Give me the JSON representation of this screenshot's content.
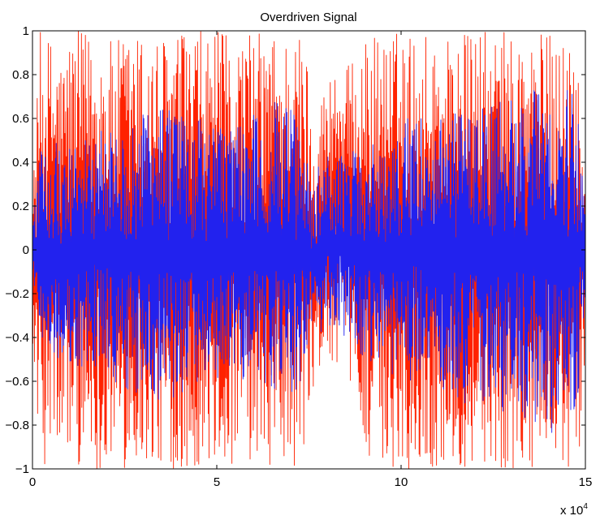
{
  "chart_data": {
    "type": "line",
    "title": "Overdriven Signal",
    "xlabel": "",
    "ylabel": "",
    "xlim": [
      0,
      150000
    ],
    "ylim": [
      -1,
      1
    ],
    "x_tick_labels": [
      "0",
      "5",
      "10",
      "15"
    ],
    "x_tick_values": [
      0,
      50000,
      100000,
      150000
    ],
    "x_multiplier_text": "x 10",
    "x_multiplier_exponent": "4",
    "y_tick_labels": [
      "1",
      "0.8",
      "0.6",
      "0.4",
      "0.2",
      "0",
      "−0.2",
      "−0.4",
      "−0.6",
      "−0.8",
      "−1"
    ],
    "y_tick_values": [
      1,
      0.8,
      0.6,
      0.4,
      0.2,
      0,
      -0.2,
      -0.4,
      -0.6,
      -0.8,
      -1
    ],
    "grid": false,
    "legend": "none",
    "series": [
      {
        "color": "#ff2200",
        "envelope_x": [
          0,
          1000,
          2000,
          4000,
          6000,
          8000,
          10000,
          14000,
          18000,
          22000,
          26000,
          30000,
          34000,
          38000,
          42000,
          46000,
          50000,
          54000,
          58000,
          62000,
          66000,
          70000,
          72000,
          74000,
          76000,
          78000,
          80000,
          82000,
          84000,
          86000,
          88000,
          92000,
          96000,
          100000,
          104000,
          108000,
          112000,
          116000,
          120000,
          124000,
          128000,
          132000,
          136000,
          140000,
          144000,
          148000,
          150000
        ],
        "envelope_upper": [
          0.25,
          0.6,
          1.0,
          0.98,
          1.0,
          0.9,
          1.0,
          1.0,
          1.0,
          0.95,
          1.0,
          1.0,
          0.98,
          1.0,
          1.0,
          1.0,
          1.0,
          0.98,
          1.0,
          1.0,
          1.0,
          1.0,
          1.0,
          1.0,
          0.6,
          0.7,
          0.8,
          0.88,
          0.85,
          0.85,
          0.88,
          1.0,
          1.0,
          1.0,
          1.0,
          1.0,
          1.0,
          1.0,
          1.0,
          1.0,
          1.0,
          1.0,
          1.0,
          1.0,
          1.0,
          1.0,
          0.3
        ],
        "envelope_lower": [
          -0.4,
          -0.7,
          -0.95,
          -1.0,
          -0.95,
          -1.0,
          -0.95,
          -1.0,
          -1.0,
          -1.0,
          -1.0,
          -1.0,
          -1.0,
          -1.0,
          -1.0,
          -1.0,
          -1.0,
          -1.0,
          -1.0,
          -1.0,
          -1.0,
          -1.0,
          -1.0,
          -1.0,
          -0.75,
          -0.55,
          -0.55,
          -0.5,
          -0.55,
          -0.6,
          -0.7,
          -1.0,
          -1.0,
          -1.0,
          -1.0,
          -1.0,
          -1.0,
          -1.0,
          -1.0,
          -1.0,
          -1.0,
          -1.0,
          -1.0,
          -1.0,
          -1.0,
          -1.0,
          -0.5
        ]
      },
      {
        "color": "#2222ee",
        "envelope_x": [
          0,
          1000,
          2000,
          4000,
          6000,
          8000,
          10000,
          14000,
          18000,
          22000,
          26000,
          30000,
          34000,
          38000,
          42000,
          46000,
          50000,
          54000,
          58000,
          62000,
          66000,
          70000,
          72000,
          74000,
          76000,
          78000,
          80000,
          82000,
          84000,
          86000,
          88000,
          92000,
          96000,
          100000,
          104000,
          108000,
          112000,
          116000,
          120000,
          124000,
          128000,
          132000,
          136000,
          140000,
          144000,
          148000,
          150000
        ],
        "envelope_upper": [
          0.1,
          0.3,
          0.45,
          0.45,
          0.5,
          0.45,
          0.5,
          0.5,
          0.55,
          0.55,
          0.6,
          0.65,
          0.65,
          0.65,
          0.6,
          0.6,
          0.55,
          0.6,
          0.6,
          0.65,
          0.7,
          0.65,
          0.6,
          0.55,
          0.35,
          0.4,
          0.45,
          0.45,
          0.45,
          0.45,
          0.45,
          0.5,
          0.55,
          0.6,
          0.6,
          0.6,
          0.6,
          0.65,
          0.65,
          0.65,
          0.7,
          0.7,
          0.75,
          0.8,
          0.8,
          0.65,
          0.15
        ],
        "envelope_lower": [
          -0.1,
          -0.3,
          -0.45,
          -0.45,
          -0.5,
          -0.5,
          -0.55,
          -0.55,
          -0.55,
          -0.6,
          -0.65,
          -0.7,
          -0.7,
          -0.7,
          -0.65,
          -0.65,
          -0.6,
          -0.6,
          -0.6,
          -0.65,
          -0.7,
          -0.7,
          -0.65,
          -0.6,
          -0.45,
          -0.4,
          -0.4,
          -0.4,
          -0.4,
          -0.45,
          -0.45,
          -0.55,
          -0.6,
          -0.6,
          -0.6,
          -0.6,
          -0.65,
          -0.7,
          -0.7,
          -0.75,
          -0.75,
          -0.75,
          -0.8,
          -0.85,
          -0.85,
          -0.7,
          -0.2
        ]
      }
    ]
  }
}
